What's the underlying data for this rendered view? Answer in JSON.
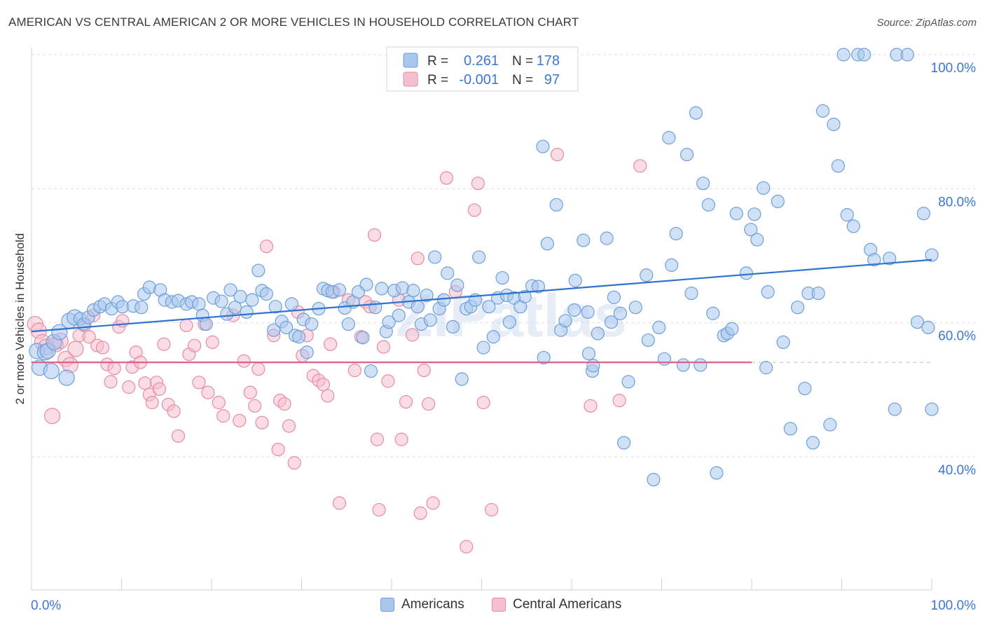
{
  "header": {
    "title": "AMERICAN VS CENTRAL AMERICAN 2 OR MORE VEHICLES IN HOUSEHOLD CORRELATION CHART",
    "source": "Source: ZipAtlas.com"
  },
  "watermark": "ZIPatlas",
  "legend_top": {
    "rows": [
      {
        "r_label": "R =",
        "r_value": "0.261",
        "n_label": "N =",
        "n_value": "178"
      },
      {
        "r_label": "R =",
        "r_value": "-0.001",
        "n_label": "N =",
        "n_value": "97"
      }
    ]
  },
  "legend_bottom": {
    "items": [
      {
        "label": "Americans"
      },
      {
        "label": "Central Americans"
      }
    ]
  },
  "colors": {
    "blue_fill": "#a9c6ec",
    "blue_stroke": "#6d9fdc",
    "blue_line": "#2e72d2",
    "pink_fill": "#f6bfd0",
    "pink_stroke": "#e88aa6",
    "pink_line": "#e0608a",
    "axis_text_blue": "#3a78d4",
    "grid": "#dddddd"
  },
  "chart_data": {
    "type": "scatter",
    "title": "AMERICAN VS CENTRAL AMERICAN 2 OR MORE VEHICLES IN HOUSEHOLD CORRELATION CHART",
    "xlabel": "",
    "ylabel": "2 or more Vehicles in Household",
    "xlim": [
      0,
      100
    ],
    "ylim": [
      20,
      102
    ],
    "x_tick_labels": [
      "0.0%",
      "100.0%"
    ],
    "y_tick_labels": [
      "40.0%",
      "60.0%",
      "80.0%",
      "100.0%"
    ],
    "y_tick_values": [
      40,
      60,
      80,
      100
    ],
    "series": [
      {
        "name": "Americans",
        "r": 0.261,
        "n": 178,
        "trend": {
          "x": [
            0,
            100
          ],
          "y": [
            58.7,
            69.4
          ]
        },
        "points": [
          [
            0.6,
            55.8
          ],
          [
            0.9,
            53.3
          ],
          [
            1.5,
            55.6
          ],
          [
            1.8,
            55.8
          ],
          [
            2.2,
            52.8
          ],
          [
            2.5,
            57.1
          ],
          [
            3.1,
            58.6
          ],
          [
            3.9,
            51.8
          ],
          [
            4.2,
            60.3
          ],
          [
            4.8,
            60.8
          ],
          [
            5.4,
            60.6
          ],
          [
            5.8,
            59.8
          ],
          [
            6.3,
            60.8
          ],
          [
            6.9,
            61.9
          ],
          [
            7.6,
            62.4
          ],
          [
            8.1,
            62.8
          ],
          [
            8.9,
            62.1
          ],
          [
            9.6,
            63.1
          ],
          [
            10.1,
            62.4
          ],
          [
            11.3,
            62.5
          ],
          [
            12.2,
            62.3
          ],
          [
            12.5,
            64.3
          ],
          [
            13.1,
            65.3
          ],
          [
            14.3,
            64.9
          ],
          [
            14.8,
            63.4
          ],
          [
            15.6,
            63.1
          ],
          [
            16.3,
            63.3
          ],
          [
            17.2,
            62.8
          ],
          [
            17.8,
            63.1
          ],
          [
            18.6,
            62.8
          ],
          [
            19.0,
            61.1
          ],
          [
            19.4,
            59.8
          ],
          [
            20.2,
            63.7
          ],
          [
            21.1,
            63.2
          ],
          [
            21.7,
            61.3
          ],
          [
            22.1,
            64.9
          ],
          [
            22.6,
            62.3
          ],
          [
            23.2,
            63.9
          ],
          [
            23.9,
            61.6
          ],
          [
            24.5,
            63.4
          ],
          [
            25.2,
            67.8
          ],
          [
            25.6,
            64.8
          ],
          [
            26.1,
            64.3
          ],
          [
            26.9,
            58.9
          ],
          [
            27.1,
            62.4
          ],
          [
            27.8,
            60.2
          ],
          [
            28.3,
            59.3
          ],
          [
            28.9,
            62.8
          ],
          [
            29.3,
            58.1
          ],
          [
            29.7,
            57.9
          ],
          [
            30.2,
            60.5
          ],
          [
            30.6,
            55.6
          ],
          [
            31.1,
            59.8
          ],
          [
            31.9,
            62.1
          ],
          [
            32.4,
            65.1
          ],
          [
            32.9,
            64.8
          ],
          [
            33.4,
            64.6
          ],
          [
            34.2,
            64.9
          ],
          [
            34.8,
            62.2
          ],
          [
            35.2,
            59.8
          ],
          [
            35.7,
            63.1
          ],
          [
            36.3,
            64.6
          ],
          [
            36.8,
            57.8
          ],
          [
            37.2,
            65.7
          ],
          [
            37.7,
            52.8
          ],
          [
            38.2,
            62.3
          ],
          [
            38.9,
            65.1
          ],
          [
            39.4,
            58.7
          ],
          [
            39.7,
            60.1
          ],
          [
            40.3,
            64.8
          ],
          [
            40.8,
            61.1
          ],
          [
            41.2,
            65.2
          ],
          [
            41.9,
            63.1
          ],
          [
            42.4,
            64.8
          ],
          [
            42.9,
            62.4
          ],
          [
            43.3,
            59.8
          ],
          [
            43.9,
            64.1
          ],
          [
            44.3,
            60.4
          ],
          [
            44.8,
            69.8
          ],
          [
            45.3,
            62.1
          ],
          [
            45.8,
            63.4
          ],
          [
            46.2,
            67.4
          ],
          [
            46.8,
            59.4
          ],
          [
            47.3,
            65.6
          ],
          [
            47.8,
            51.6
          ],
          [
            48.3,
            62.1
          ],
          [
            48.8,
            62.4
          ],
          [
            49.3,
            63.4
          ],
          [
            49.7,
            69.8
          ],
          [
            50.2,
            56.3
          ],
          [
            50.8,
            62.4
          ],
          [
            51.3,
            57.9
          ],
          [
            51.8,
            63.7
          ],
          [
            52.3,
            66.7
          ],
          [
            52.8,
            64.1
          ],
          [
            53.1,
            60.1
          ],
          [
            53.6,
            63.7
          ],
          [
            54.3,
            62.4
          ],
          [
            54.8,
            63.9
          ],
          [
            55.6,
            65.5
          ],
          [
            56.3,
            65.4
          ],
          [
            56.8,
            86.3
          ],
          [
            56.9,
            54.8
          ],
          [
            57.3,
            71.8
          ],
          [
            58.3,
            77.6
          ],
          [
            58.8,
            58.9
          ],
          [
            59.3,
            60.3
          ],
          [
            60.3,
            61.9
          ],
          [
            60.4,
            66.3
          ],
          [
            61.3,
            72.3
          ],
          [
            61.8,
            61.6
          ],
          [
            61.9,
            55.4
          ],
          [
            62.3,
            52.8
          ],
          [
            62.9,
            58.4
          ],
          [
            62.4,
            53.6
          ],
          [
            63.9,
            72.6
          ],
          [
            64.4,
            60.1
          ],
          [
            64.7,
            63.8
          ],
          [
            65.4,
            61.4
          ],
          [
            65.8,
            42.1
          ],
          [
            66.3,
            51.2
          ],
          [
            67.1,
            62.3
          ],
          [
            68.3,
            67.1
          ],
          [
            68.5,
            57.4
          ],
          [
            69.1,
            36.6
          ],
          [
            69.7,
            59.3
          ],
          [
            70.3,
            54.6
          ],
          [
            70.8,
            87.6
          ],
          [
            71.1,
            68.6
          ],
          [
            71.6,
            73.3
          ],
          [
            72.4,
            53.7
          ],
          [
            72.8,
            85.1
          ],
          [
            73.3,
            64.4
          ],
          [
            73.8,
            91.3
          ],
          [
            74.3,
            53.7
          ],
          [
            74.6,
            80.8
          ],
          [
            75.2,
            77.6
          ],
          [
            75.7,
            61.4
          ],
          [
            76.1,
            37.6
          ],
          [
            76.9,
            58.1
          ],
          [
            77.3,
            58.4
          ],
          [
            77.8,
            59.1
          ],
          [
            78.3,
            76.3
          ],
          [
            79.4,
            67.4
          ],
          [
            79.9,
            73.9
          ],
          [
            80.3,
            76.2
          ],
          [
            80.6,
            72.4
          ],
          [
            81.3,
            80.1
          ],
          [
            81.6,
            53.3
          ],
          [
            81.8,
            64.6
          ],
          [
            82.9,
            78.1
          ],
          [
            83.5,
            57.1
          ],
          [
            84.3,
            44.2
          ],
          [
            85.1,
            62.3
          ],
          [
            85.9,
            50.2
          ],
          [
            86.3,
            64.4
          ],
          [
            86.8,
            42.1
          ],
          [
            87.4,
            64.4
          ],
          [
            87.9,
            91.6
          ],
          [
            88.7,
            44.8
          ],
          [
            89.1,
            89.6
          ],
          [
            89.6,
            83.4
          ],
          [
            90.2,
            100.0
          ],
          [
            90.6,
            76.1
          ],
          [
            91.3,
            74.4
          ],
          [
            91.8,
            100.0
          ],
          [
            92.5,
            100.0
          ],
          [
            93.2,
            70.9
          ],
          [
            93.6,
            69.4
          ],
          [
            95.3,
            69.6
          ],
          [
            95.9,
            47.1
          ],
          [
            96.1,
            100.0
          ],
          [
            97.3,
            100.0
          ],
          [
            98.4,
            60.1
          ],
          [
            99.1,
            76.3
          ],
          [
            99.6,
            59.3
          ],
          [
            100.0,
            47.1
          ],
          [
            100.0,
            70.1
          ]
        ]
      },
      {
        "name": "Central Americans",
        "r": -0.001,
        "n": 97,
        "trend": {
          "x": [
            0,
            80
          ],
          "y": [
            54.1,
            54.1
          ]
        },
        "points": [
          [
            0.4,
            59.8
          ],
          [
            0.8,
            58.8
          ],
          [
            1.2,
            57.1
          ],
          [
            1.6,
            56.4
          ],
          [
            2.3,
            46.1
          ],
          [
            2.7,
            56.8
          ],
          [
            3.2,
            57.3
          ],
          [
            3.8,
            54.6
          ],
          [
            4.3,
            53.7
          ],
          [
            4.9,
            56.1
          ],
          [
            5.3,
            58.1
          ],
          [
            5.9,
            59.6
          ],
          [
            6.4,
            57.9
          ],
          [
            6.9,
            61.1
          ],
          [
            7.3,
            56.6
          ],
          [
            7.9,
            56.3
          ],
          [
            8.4,
            53.8
          ],
          [
            8.8,
            51.2
          ],
          [
            9.2,
            53.2
          ],
          [
            9.7,
            59.4
          ],
          [
            10.1,
            60.3
          ],
          [
            10.8,
            50.4
          ],
          [
            11.2,
            53.4
          ],
          [
            11.6,
            55.6
          ],
          [
            12.1,
            54.1
          ],
          [
            12.6,
            51.0
          ],
          [
            13.1,
            49.3
          ],
          [
            13.4,
            48.1
          ],
          [
            13.9,
            51.1
          ],
          [
            14.2,
            50.1
          ],
          [
            14.7,
            56.8
          ],
          [
            15.2,
            47.8
          ],
          [
            15.8,
            46.8
          ],
          [
            16.3,
            43.1
          ],
          [
            17.2,
            59.6
          ],
          [
            17.5,
            55.3
          ],
          [
            18.1,
            56.6
          ],
          [
            18.6,
            51.1
          ],
          [
            19.2,
            59.8
          ],
          [
            19.6,
            49.6
          ],
          [
            20.1,
            57.1
          ],
          [
            20.8,
            48.1
          ],
          [
            21.3,
            46.1
          ],
          [
            22.4,
            61.1
          ],
          [
            23.1,
            45.4
          ],
          [
            23.6,
            54.3
          ],
          [
            24.3,
            49.6
          ],
          [
            24.8,
            47.6
          ],
          [
            25.2,
            53.1
          ],
          [
            25.6,
            45.1
          ],
          [
            26.1,
            71.4
          ],
          [
            26.9,
            58.1
          ],
          [
            27.4,
            41.1
          ],
          [
            27.6,
            48.4
          ],
          [
            28.1,
            47.9
          ],
          [
            28.6,
            44.6
          ],
          [
            29.2,
            39.1
          ],
          [
            29.6,
            61.6
          ],
          [
            30.1,
            55.1
          ],
          [
            30.6,
            58.1
          ],
          [
            31.3,
            52.1
          ],
          [
            31.9,
            51.4
          ],
          [
            32.4,
            50.8
          ],
          [
            32.9,
            49.1
          ],
          [
            33.2,
            56.8
          ],
          [
            33.6,
            64.6
          ],
          [
            34.2,
            33.1
          ],
          [
            35.2,
            63.4
          ],
          [
            35.9,
            52.9
          ],
          [
            36.6,
            57.9
          ],
          [
            37.1,
            63.1
          ],
          [
            37.6,
            62.4
          ],
          [
            38.1,
            73.1
          ],
          [
            38.4,
            42.6
          ],
          [
            38.6,
            32.1
          ],
          [
            39.1,
            56.4
          ],
          [
            39.6,
            51.3
          ],
          [
            40.8,
            63.4
          ],
          [
            41.1,
            42.6
          ],
          [
            41.6,
            48.2
          ],
          [
            42.3,
            58.2
          ],
          [
            42.9,
            69.6
          ],
          [
            43.2,
            31.6
          ],
          [
            43.6,
            52.9
          ],
          [
            44.1,
            47.9
          ],
          [
            44.6,
            33.1
          ],
          [
            46.1,
            81.6
          ],
          [
            47.1,
            64.6
          ],
          [
            48.3,
            26.6
          ],
          [
            49.2,
            76.8
          ],
          [
            49.6,
            80.8
          ],
          [
            50.2,
            48.1
          ],
          [
            51.1,
            32.1
          ],
          [
            58.4,
            85.1
          ],
          [
            62.1,
            47.6
          ],
          [
            65.3,
            48.4
          ],
          [
            67.6,
            83.4
          ]
        ]
      }
    ]
  }
}
